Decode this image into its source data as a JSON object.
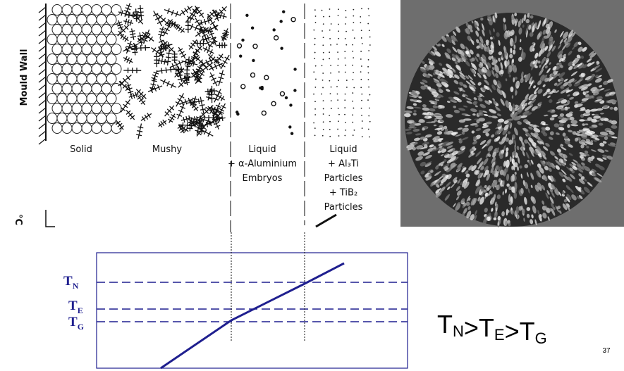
{
  "diagram": {
    "wall_label": "Mould Wall",
    "zones": [
      {
        "lines": [
          "Solid"
        ]
      },
      {
        "lines": [
          "Mushy"
        ]
      },
      {
        "lines": [
          "Liquid",
          "+ α-Aluminium",
          "Embryos"
        ]
      },
      {
        "lines": [
          "Liquid",
          "+ Al₃Ti",
          "Particles",
          "+ TiB₂",
          "Particles"
        ]
      }
    ],
    "temperature_unit": "°C",
    "temperature_labels": [
      {
        "base": "T",
        "sub": "N"
      },
      {
        "base": "T",
        "sub": "E"
      },
      {
        "base": "T",
        "sub": "G"
      }
    ],
    "equation": [
      {
        "base": "T",
        "sub": "N"
      },
      ">",
      {
        "base": "T",
        "sub": "E"
      },
      ">",
      {
        "base": "T",
        "sub": "G"
      }
    ],
    "page_number": "37"
  }
}
